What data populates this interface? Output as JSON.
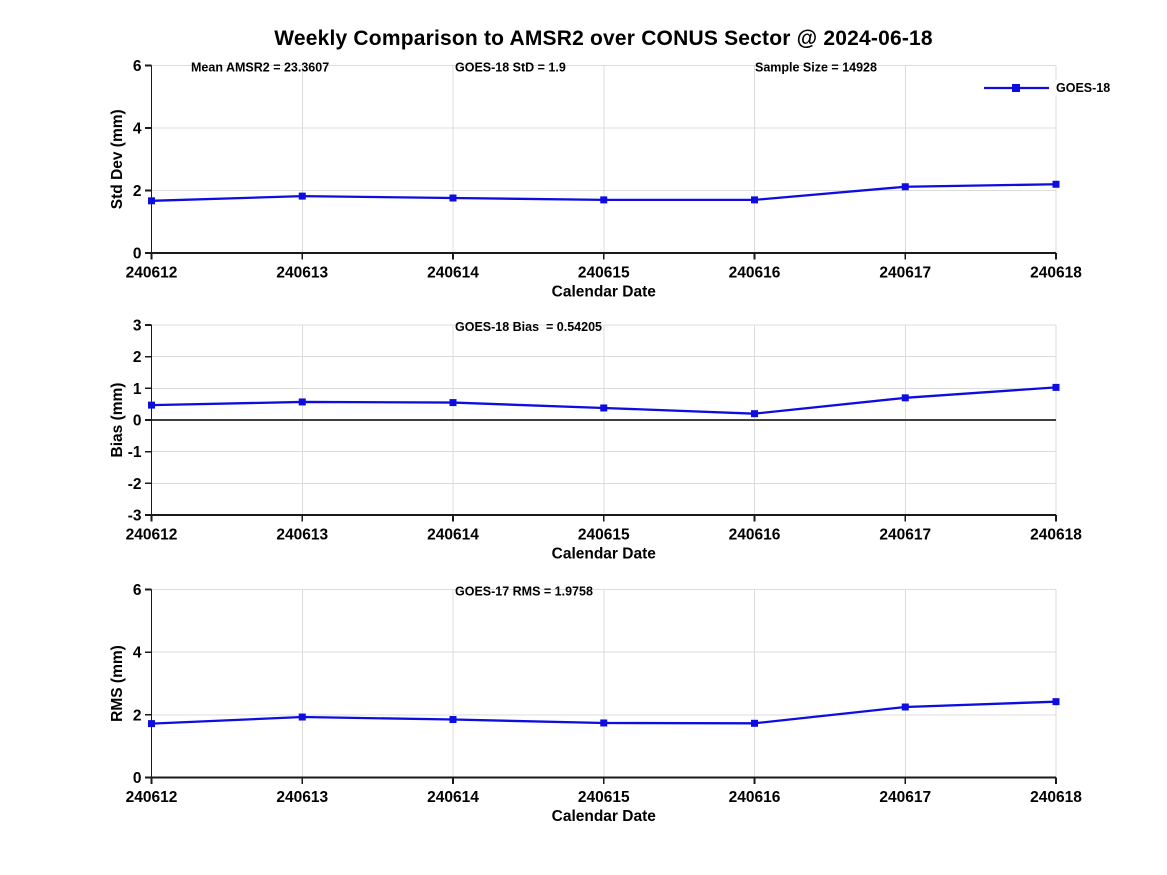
{
  "page": {
    "title": "Weekly Comparison to AMSR2 over CONUS Sector @ 2024-06-18"
  },
  "colors": {
    "series_blue": "#0d0de0",
    "grid": "#dcdcdc",
    "axis": "#1a1a1a",
    "zero_line": "#3f3f3f",
    "text": "#000000"
  },
  "legend": {
    "label": "GOES-18",
    "position": "top-right"
  },
  "chart_data": [
    {
      "type": "line",
      "name": "std-dev-vs-date",
      "annotations": [
        "Mean AMSR2 = 23.3607",
        "GOES-18 StD = 1.9",
        "Sample Size = 14928"
      ],
      "categories": [
        "240612",
        "240613",
        "240614",
        "240615",
        "240616",
        "240617",
        "240618"
      ],
      "series": [
        {
          "name": "GOES-18",
          "values": [
            1.67,
            1.82,
            1.76,
            1.7,
            1.7,
            2.12,
            2.2
          ]
        }
      ],
      "xlabel": "Calendar Date",
      "ylabel": "Std Dev (mm)",
      "ylim": [
        0,
        6
      ],
      "yticks": [
        0,
        2,
        4,
        6
      ],
      "grid": true,
      "zero_line": false,
      "has_legend": true
    },
    {
      "type": "line",
      "name": "bias-vs-date",
      "annotations": [
        "GOES-18 Bias  = 0.54205"
      ],
      "categories": [
        "240612",
        "240613",
        "240614",
        "240615",
        "240616",
        "240617",
        "240618"
      ],
      "series": [
        {
          "name": "GOES-18",
          "values": [
            0.47,
            0.57,
            0.55,
            0.38,
            0.2,
            0.7,
            1.03
          ]
        }
      ],
      "xlabel": "Calendar Date",
      "ylabel": "Bias (mm)",
      "ylim": [
        -3,
        3
      ],
      "yticks": [
        -3,
        -2,
        -1,
        0,
        1,
        2,
        3
      ],
      "grid": true,
      "zero_line": true,
      "has_legend": false
    },
    {
      "type": "line",
      "name": "rms-vs-date",
      "annotations": [
        "GOES-17 RMS = 1.9758"
      ],
      "categories": [
        "240612",
        "240613",
        "240614",
        "240615",
        "240616",
        "240617",
        "240618"
      ],
      "series": [
        {
          "name": "GOES-18",
          "values": [
            1.72,
            1.93,
            1.85,
            1.74,
            1.73,
            2.25,
            2.42
          ]
        }
      ],
      "xlabel": "Calendar Date",
      "ylabel": "RMS (mm)",
      "ylim": [
        0,
        6
      ],
      "yticks": [
        0,
        2,
        4,
        6
      ],
      "grid": true,
      "zero_line": false,
      "has_legend": false
    }
  ]
}
